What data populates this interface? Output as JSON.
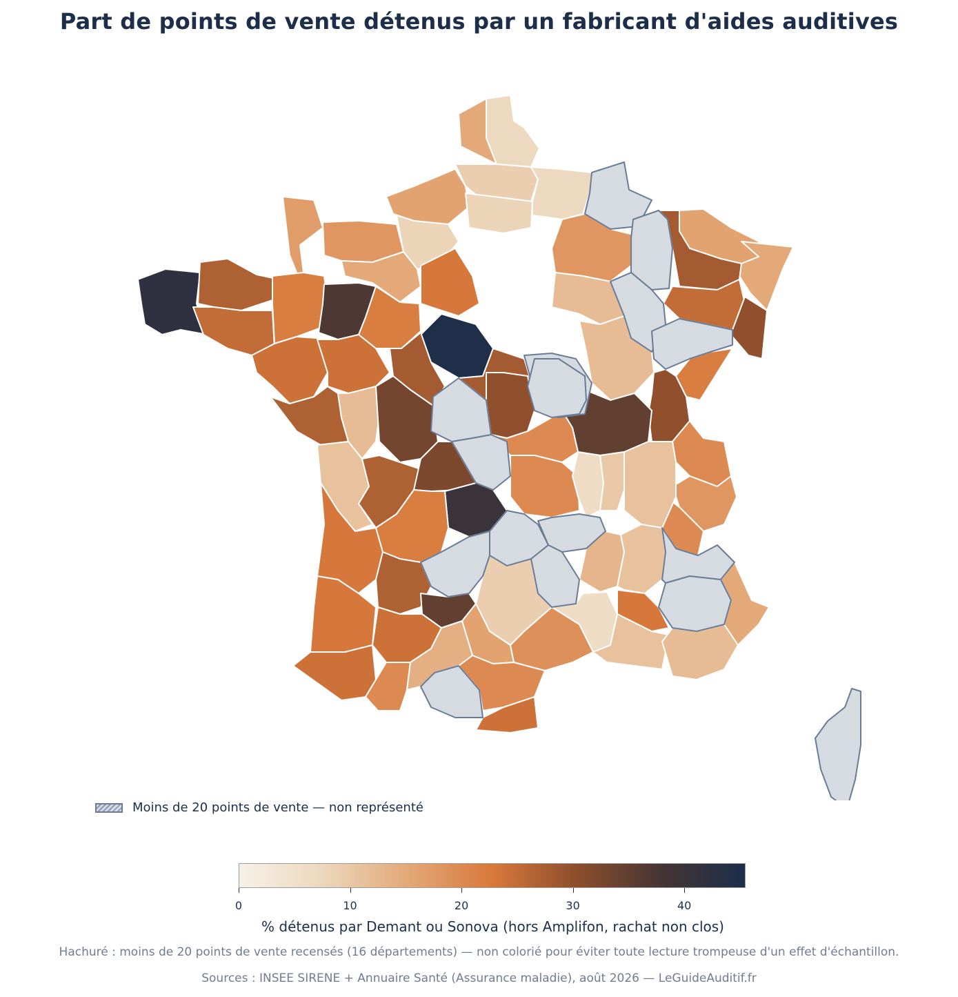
{
  "title": "Part de points de vente détenus par un fabricant d'aides auditives",
  "legend": {
    "hatched_label": "Moins de 20 points de vente — non représenté"
  },
  "colorbar": {
    "label": "% détenus par Demant ou Sonova (hors Amplifon, rachat non clos)",
    "min": 0,
    "max": 45.5,
    "ticks": [
      "0",
      "10",
      "20",
      "30",
      "40"
    ],
    "tick_values": [
      0,
      10,
      20,
      30,
      40
    ],
    "colors": [
      "#f7f1e8",
      "#ecd7bc",
      "#e3a878",
      "#d8793b",
      "#8d4e2c",
      "#453534",
      "#1c2e4a"
    ]
  },
  "notes": {
    "hatch": "Hachuré : moins de 20 points de vente recensés (16 départements) — non colorié pour éviter toute lecture trompeuse d'un effet d'échantillon.",
    "sources": "Sources : INSEE SIRENE + Annuaire Santé (Assurance maladie), août 2026 — LeGuideAuditif.fr"
  },
  "map": {
    "no_data_color": "#d6dae1",
    "no_data_border": "#6a7b95",
    "border_color": "#ffffff",
    "regions": [
      {
        "id": "nord",
        "value": 15
      },
      {
        "id": "pas-de-calais",
        "value": 7
      },
      {
        "id": "somme",
        "value": 9
      },
      {
        "id": "seine-maritime",
        "value": 16
      },
      {
        "id": "oise",
        "value": 8
      },
      {
        "id": "aisne",
        "value": 7
      },
      {
        "id": "ardennes",
        "value": null
      },
      {
        "id": "marne",
        "value": 18
      },
      {
        "id": "meuse",
        "value": null
      },
      {
        "id": "moselle",
        "value": 16
      },
      {
        "id": "bas-rhin",
        "value": 15
      },
      {
        "id": "meurthe-et-moselle",
        "value": 28
      },
      {
        "id": "vosges",
        "value": 25
      },
      {
        "id": "haut-rhin",
        "value": 30
      },
      {
        "id": "manche",
        "value": 17
      },
      {
        "id": "calvados",
        "value": 18
      },
      {
        "id": "eure",
        "value": 8
      },
      {
        "id": "orne",
        "value": 15
      },
      {
        "id": "finistere",
        "value": 42
      },
      {
        "id": "cotes-d-armor",
        "value": 27
      },
      {
        "id": "morbihan",
        "value": 25
      },
      {
        "id": "ille-et-vilaine",
        "value": 22
      },
      {
        "id": "mayenne",
        "value": 37
      },
      {
        "id": "sarthe",
        "value": 22
      },
      {
        "id": "eure-et-loir",
        "value": 23
      },
      {
        "id": "loiret",
        "value": 45
      },
      {
        "id": "loire-atlantique",
        "value": 24
      },
      {
        "id": "maine-et-loire",
        "value": 24
      },
      {
        "id": "indre-et-loire",
        "value": 28
      },
      {
        "id": "loir-et-cher",
        "value": 28
      },
      {
        "id": "yonne",
        "value": null
      },
      {
        "id": "aube",
        "value": 12
      },
      {
        "id": "haute-marne",
        "value": null
      },
      {
        "id": "cote-d-or",
        "value": 12
      },
      {
        "id": "haute-saone",
        "value": null
      },
      {
        "id": "doubs",
        "value": 22
      },
      {
        "id": "jura",
        "value": 30
      },
      {
        "id": "vendee",
        "value": 27
      },
      {
        "id": "deux-sevres",
        "value": 12
      },
      {
        "id": "vienne",
        "value": 33
      },
      {
        "id": "indre",
        "value": null
      },
      {
        "id": "cher",
        "value": 30
      },
      {
        "id": "nievre",
        "value": null
      },
      {
        "id": "saone-et-loire",
        "value": 35
      },
      {
        "id": "ain",
        "value": 20
      },
      {
        "id": "haute-savoie",
        "value": 18
      },
      {
        "id": "savoie",
        "value": 20
      },
      {
        "id": "charente-maritime",
        "value": 11
      },
      {
        "id": "charente",
        "value": 27
      },
      {
        "id": "haute-vienne",
        "value": 32
      },
      {
        "id": "creuse",
        "value": null
      },
      {
        "id": "allier",
        "value": 20
      },
      {
        "id": "puy-de-dome",
        "value": 20
      },
      {
        "id": "loire",
        "value": 6
      },
      {
        "id": "rhone",
        "value": 10
      },
      {
        "id": "isere",
        "value": 11
      },
      {
        "id": "correze",
        "value": 40
      },
      {
        "id": "cantal",
        "value": null
      },
      {
        "id": "haute-loire",
        "value": null
      },
      {
        "id": "ardeche",
        "value": 13
      },
      {
        "id": "drome",
        "value": 11
      },
      {
        "id": "hautes-alpes",
        "value": null
      },
      {
        "id": "gironde",
        "value": 23
      },
      {
        "id": "dordogne",
        "value": 22
      },
      {
        "id": "lot",
        "value": null
      },
      {
        "id": "lozere",
        "value": null
      },
      {
        "id": "alpes-de-haute-provence",
        "value": null
      },
      {
        "id": "landes",
        "value": 23
      },
      {
        "id": "lot-et-garonne",
        "value": 27
      },
      {
        "id": "tarn-et-garonne",
        "value": 35
      },
      {
        "id": "aveyron",
        "value": 9
      },
      {
        "id": "gard",
        "value": 6
      },
      {
        "id": "vaucluse",
        "value": 23
      },
      {
        "id": "alpes-maritimes",
        "value": 15
      },
      {
        "id": "pyrenees-atlantiques",
        "value": 24
      },
      {
        "id": "gers",
        "value": 24
      },
      {
        "id": "tarn",
        "value": 16
      },
      {
        "id": "herault",
        "value": 19
      },
      {
        "id": "bouches-du-rhone",
        "value": 11
      },
      {
        "id": "var",
        "value": 12
      },
      {
        "id": "hautes-pyrenees",
        "value": 20
      },
      {
        "id": "haute-garonne",
        "value": 14
      },
      {
        "id": "ariege",
        "value": null
      },
      {
        "id": "aude",
        "value": 20
      },
      {
        "id": "pyrenees-orientales",
        "value": 24
      },
      {
        "id": "corse",
        "value": null
      }
    ]
  }
}
